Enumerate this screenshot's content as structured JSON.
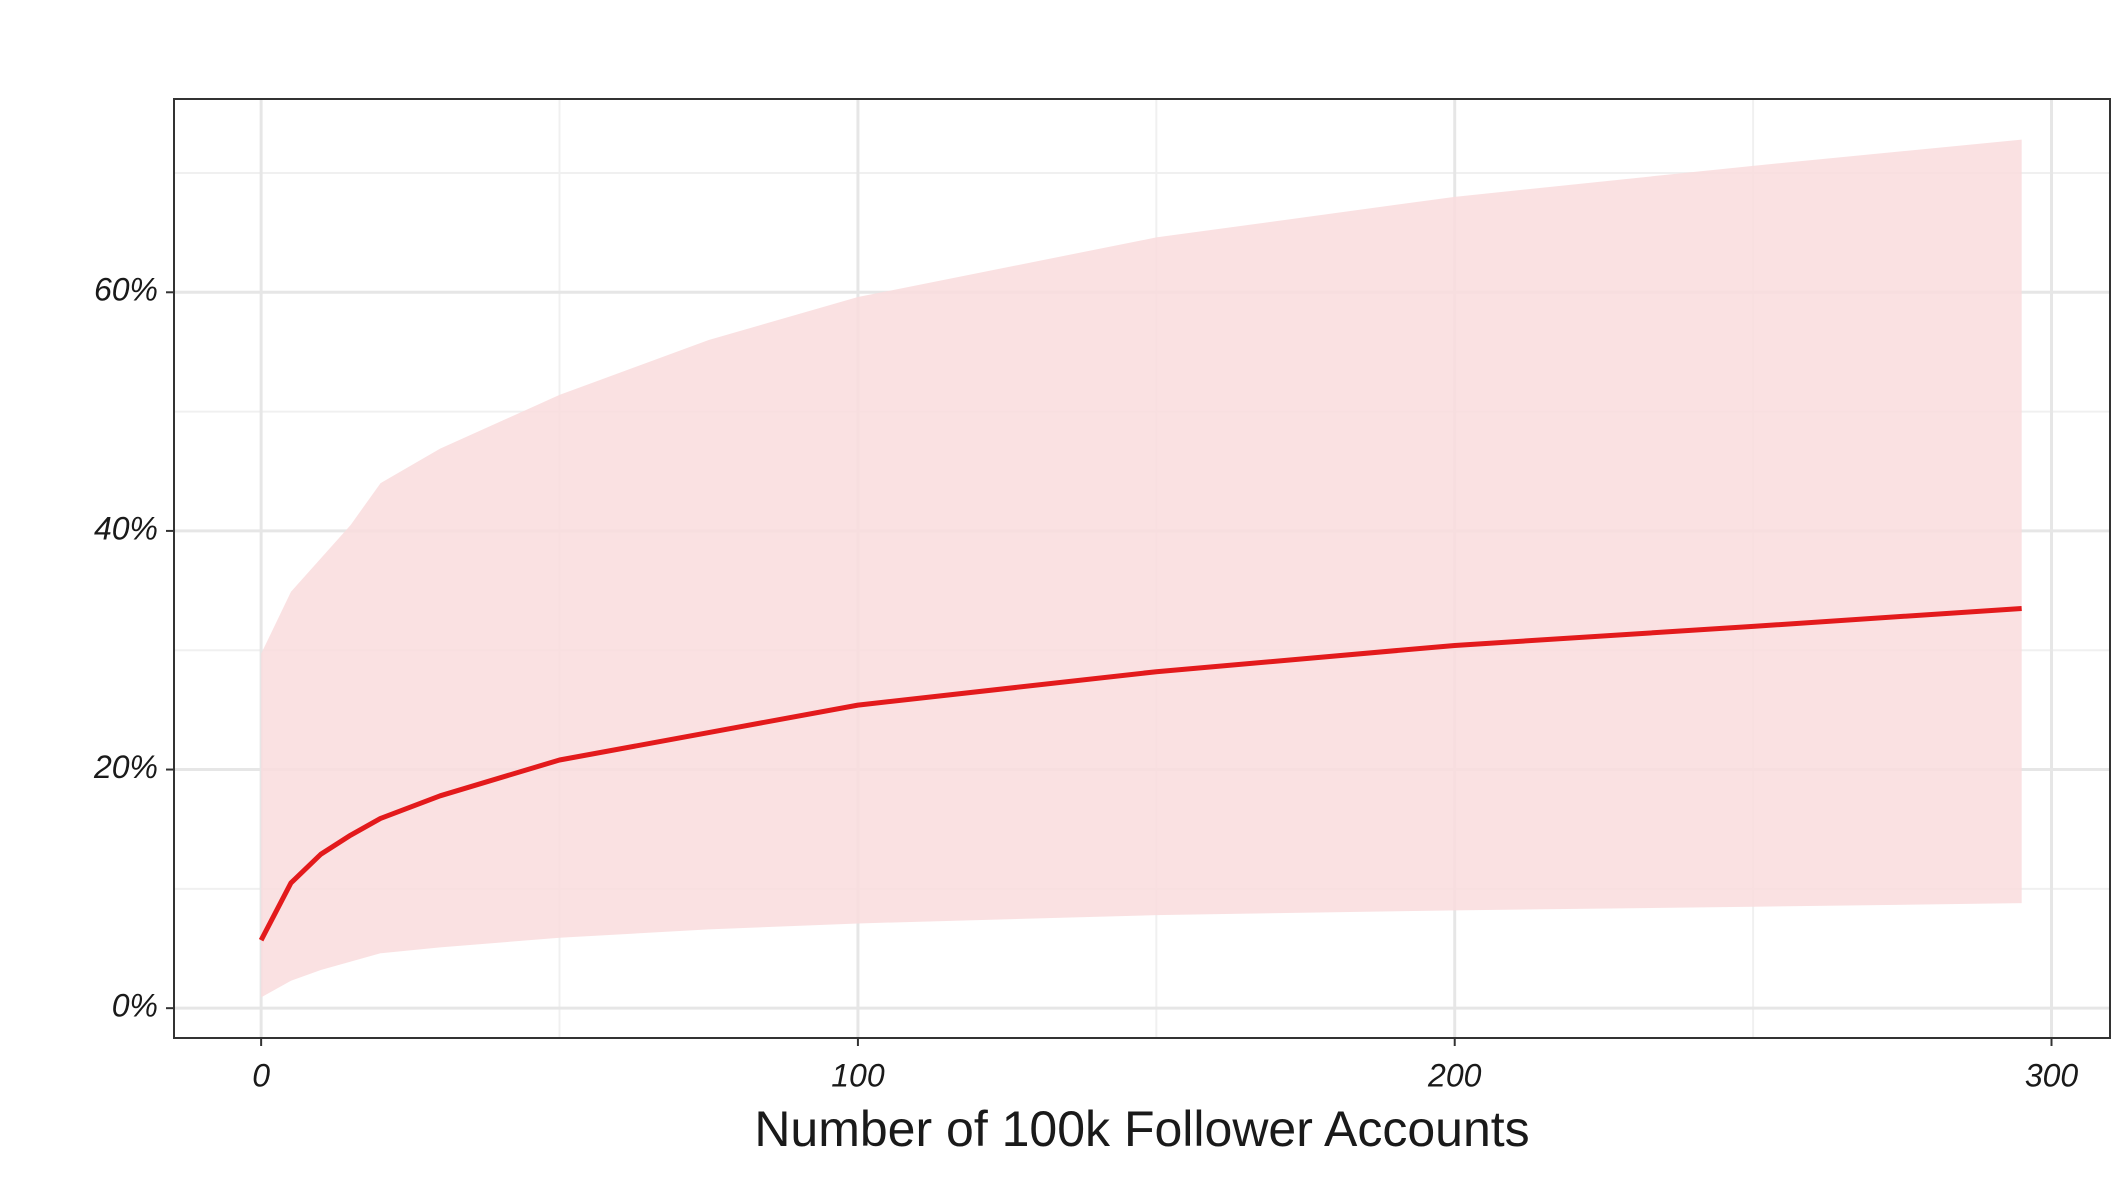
{
  "chart_data": {
    "type": "line",
    "x_label": "Number of 100k Follower Accounts",
    "x": [
      0,
      5,
      10,
      15,
      20,
      30,
      50,
      75,
      100,
      150,
      200,
      250,
      295
    ],
    "values": [
      5.7,
      10.5,
      12.9,
      14.5,
      15.9,
      17.8,
      20.8,
      23.1,
      25.4,
      28.2,
      30.4,
      32.0,
      33.5
    ],
    "lower": [
      0.9,
      2.3,
      3.2,
      3.9,
      4.6,
      5.1,
      5.9,
      6.6,
      7.1,
      7.8,
      8.2,
      8.5,
      8.8
    ],
    "upper": [
      29.7,
      34.9,
      37.7,
      40.5,
      44.0,
      46.9,
      51.4,
      56.0,
      59.6,
      64.6,
      68.0,
      70.6,
      72.8
    ],
    "color": "#e31a1c",
    "band_color": "#f9dcdd",
    "xlim": [
      -14.6,
      309.8
    ],
    "ylim": [
      -2.5,
      76.2
    ],
    "xticks": [
      0,
      100,
      200,
      300
    ],
    "yticks": [
      {
        "value": 0,
        "label": "0%"
      },
      {
        "value": 20,
        "label": "20%"
      },
      {
        "value": 40,
        "label": "40%"
      },
      {
        "value": 60,
        "label": "60%"
      }
    ],
    "xminor": [
      50,
      150,
      250
    ],
    "yminor": [
      10,
      30,
      50,
      70
    ],
    "grid": true
  }
}
